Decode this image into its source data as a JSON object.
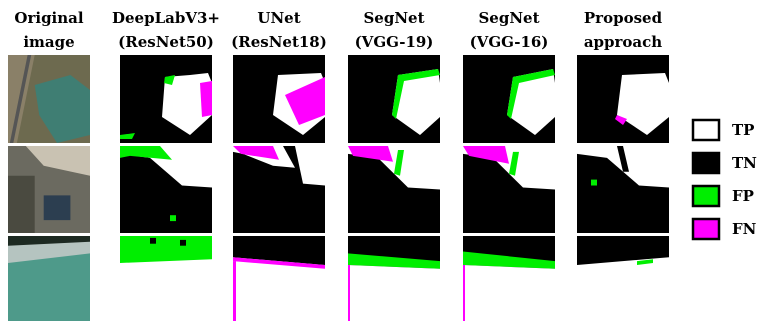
{
  "columns": [
    [
      "Original",
      "image"
    ],
    [
      "DeepLabV3+",
      "(ResNet50)"
    ],
    [
      "UNet",
      "(ResNet18)"
    ],
    [
      "SegNet",
      "(VGG-19)"
    ],
    [
      "SegNet",
      "(VGG-16)"
    ],
    [
      "Proposed",
      "approach"
    ]
  ],
  "legend": [
    "TP",
    "TN",
    "FP",
    "FN"
  ]
}
